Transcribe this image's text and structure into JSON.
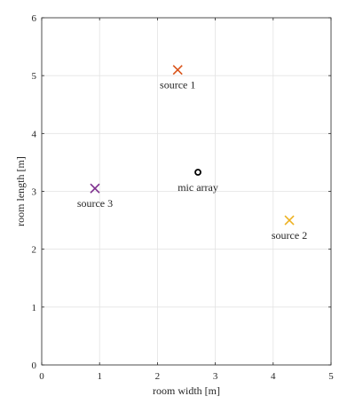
{
  "chart_data": {
    "type": "scatter",
    "xlabel": "room width [m]",
    "ylabel": "room length [m]",
    "xlim": [
      0,
      5
    ],
    "ylim": [
      0,
      6
    ],
    "xticks": [
      "0",
      "1",
      "2",
      "3",
      "4",
      "5"
    ],
    "yticks": [
      "0",
      "1",
      "2",
      "3",
      "4",
      "5",
      "6"
    ],
    "grid": true,
    "points": [
      {
        "label": "source 1",
        "x": 2.35,
        "y": 5.1,
        "marker": "x",
        "color": "#d95319"
      },
      {
        "label": "source 2",
        "x": 4.28,
        "y": 2.5,
        "marker": "x",
        "color": "#edb120"
      },
      {
        "label": "source 3",
        "x": 0.92,
        "y": 3.05,
        "marker": "x",
        "color": "#7e2f8e"
      },
      {
        "label": "mic array",
        "x": 2.7,
        "y": 3.33,
        "marker": "o",
        "color": "#000000"
      }
    ]
  }
}
